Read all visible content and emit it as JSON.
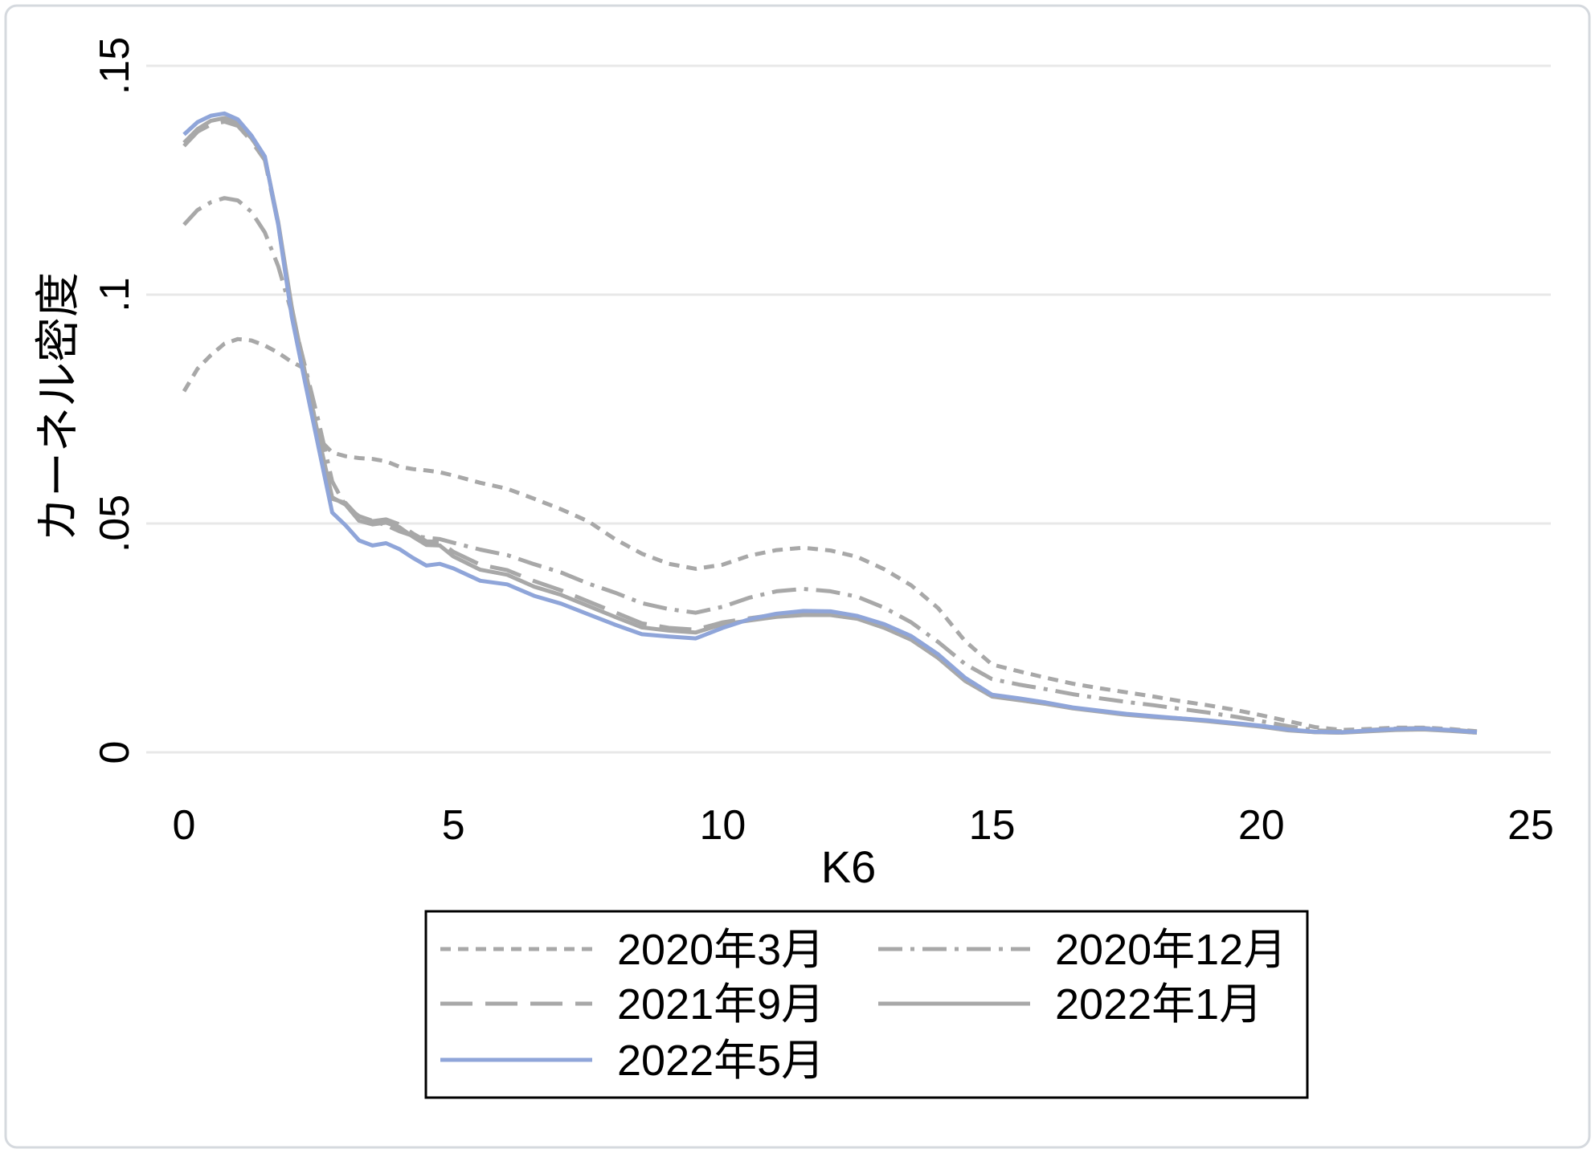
{
  "page": {
    "background": "#ffffff",
    "frame_border_color": "#d5d9de"
  },
  "colors": {
    "grid": "#e8e8e8",
    "gray_series": "#a8a8a8",
    "blue_series": "#8fa5d9",
    "text": "#000000",
    "legend_border": "#000000"
  },
  "chart_data": {
    "type": "line",
    "title": "",
    "xlabel": "K6",
    "ylabel": "カーネル密度",
    "xlim": [
      0,
      25
    ],
    "ylim": [
      0,
      0.15
    ],
    "grid": "horizontal",
    "legend_position": "bottom-center",
    "x_ticks": [
      {
        "value": 0,
        "label": "0"
      },
      {
        "value": 5,
        "label": "5"
      },
      {
        "value": 10,
        "label": "10"
      },
      {
        "value": 15,
        "label": "15"
      },
      {
        "value": 20,
        "label": "20"
      },
      {
        "value": 25,
        "label": "25"
      }
    ],
    "y_ticks": [
      {
        "value": 0,
        "label": "0"
      },
      {
        "value": 0.05,
        "label": ".05"
      },
      {
        "value": 0.1,
        "label": ".1"
      },
      {
        "value": 0.15,
        "label": ".15"
      }
    ],
    "x": [
      0,
      0.25,
      0.5,
      0.75,
      1,
      1.25,
      1.5,
      1.75,
      2,
      2.25,
      2.5,
      2.75,
      3,
      3.25,
      3.5,
      3.75,
      4,
      4.25,
      4.5,
      4.75,
      5,
      5.5,
      6,
      6.5,
      7,
      7.5,
      8,
      8.5,
      9,
      9.5,
      10,
      10.5,
      11,
      11.5,
      12,
      12.5,
      13,
      13.5,
      14,
      14.5,
      15,
      15.5,
      16,
      16.5,
      17,
      17.5,
      18,
      18.5,
      19,
      19.5,
      20,
      20.5,
      21,
      21.5,
      22,
      22.5,
      23,
      23.5,
      24
    ],
    "series": [
      {
        "name": "2020年3月",
        "color": "#a8a8a8",
        "dash": "short-dash",
        "y": [
          0.0789,
          0.0838,
          0.0868,
          0.0893,
          0.0903,
          0.09,
          0.0889,
          0.0873,
          0.0853,
          0.0838,
          0.0685,
          0.0655,
          0.0647,
          0.0643,
          0.0641,
          0.0636,
          0.0624,
          0.0619,
          0.0616,
          0.0612,
          0.0605,
          0.0589,
          0.0576,
          0.0554,
          0.0531,
          0.0505,
          0.0466,
          0.0434,
          0.0412,
          0.0401,
          0.041,
          0.043,
          0.0442,
          0.0447,
          0.0441,
          0.0427,
          0.04,
          0.0365,
          0.0315,
          0.0243,
          0.0192,
          0.0177,
          0.0163,
          0.015,
          0.014,
          0.0131,
          0.0122,
          0.0112,
          0.0103,
          0.0093,
          0.0081,
          0.0068,
          0.0055,
          0.0049,
          0.0051,
          0.0054,
          0.0054,
          0.0051,
          0.0046
        ]
      },
      {
        "name": "2020年12月",
        "color": "#a8a8a8",
        "dash": "dash-dot",
        "y": [
          0.1153,
          0.1185,
          0.1202,
          0.1211,
          0.1206,
          0.1181,
          0.1136,
          0.1062,
          0.096,
          0.0842,
          0.0722,
          0.0592,
          0.0538,
          0.0516,
          0.0506,
          0.0496,
          0.0483,
          0.0473,
          0.0469,
          0.0466,
          0.0458,
          0.0443,
          0.0431,
          0.0411,
          0.0393,
          0.0369,
          0.0349,
          0.0326,
          0.0313,
          0.0305,
          0.0318,
          0.0338,
          0.0352,
          0.0357,
          0.0352,
          0.034,
          0.0316,
          0.0284,
          0.0241,
          0.0193,
          0.016,
          0.0148,
          0.0138,
          0.0127,
          0.0118,
          0.011,
          0.0103,
          0.0095,
          0.0087,
          0.0078,
          0.0068,
          0.0057,
          0.0048,
          0.0046,
          0.0049,
          0.0052,
          0.0053,
          0.005,
          0.0045
        ]
      },
      {
        "name": "2021年9月",
        "color": "#a8a8a8",
        "dash": "long-dash",
        "y": [
          0.1325,
          0.1356,
          0.1372,
          0.1378,
          0.1369,
          0.1336,
          0.1294,
          0.1152,
          0.0968,
          0.0823,
          0.0683,
          0.0554,
          0.0545,
          0.0513,
          0.0505,
          0.0509,
          0.0498,
          0.0478,
          0.0461,
          0.046,
          0.0438,
          0.041,
          0.0398,
          0.0374,
          0.0354,
          0.033,
          0.0306,
          0.0282,
          0.0272,
          0.0268,
          0.0284,
          0.0293,
          0.0301,
          0.0306,
          0.0304,
          0.0295,
          0.0276,
          0.025,
          0.021,
          0.016,
          0.0124,
          0.0116,
          0.0108,
          0.0097,
          0.009,
          0.0083,
          0.0078,
          0.0074,
          0.0069,
          0.0063,
          0.0057,
          0.0049,
          0.0044,
          0.0043,
          0.0047,
          0.005,
          0.0051,
          0.0048,
          0.0043
        ]
      },
      {
        "name": "2022年1月",
        "color": "#a8a8a8",
        "dash": "solid",
        "y": [
          0.1332,
          0.1362,
          0.138,
          0.1386,
          0.1376,
          0.1342,
          0.13,
          0.1158,
          0.0973,
          0.0828,
          0.0688,
          0.0557,
          0.0541,
          0.0506,
          0.0498,
          0.0502,
          0.0492,
          0.0471,
          0.0453,
          0.0452,
          0.0428,
          0.0399,
          0.0388,
          0.0362,
          0.0344,
          0.032,
          0.0296,
          0.0273,
          0.0266,
          0.0262,
          0.028,
          0.0288,
          0.0296,
          0.03,
          0.03,
          0.0292,
          0.0272,
          0.0246,
          0.0206,
          0.0156,
          0.0122,
          0.0114,
          0.0106,
          0.0096,
          0.0089,
          0.0082,
          0.0077,
          0.0073,
          0.0068,
          0.0062,
          0.0056,
          0.0048,
          0.0044,
          0.0043,
          0.0046,
          0.0049,
          0.005,
          0.0047,
          0.0043
        ]
      },
      {
        "name": "2022年5月",
        "color": "#8fa5d9",
        "dash": "solid",
        "y": [
          0.135,
          0.1377,
          0.1391,
          0.1396,
          0.1383,
          0.1348,
          0.1302,
          0.1152,
          0.0952,
          0.0807,
          0.0665,
          0.0524,
          0.0496,
          0.0463,
          0.0452,
          0.0457,
          0.0444,
          0.0425,
          0.0408,
          0.0412,
          0.0402,
          0.0375,
          0.0367,
          0.0342,
          0.0325,
          0.0302,
          0.0279,
          0.0258,
          0.0253,
          0.0249,
          0.0272,
          0.0291,
          0.0303,
          0.0309,
          0.0308,
          0.0298,
          0.028,
          0.0254,
          0.0214,
          0.0163,
          0.0126,
          0.0118,
          0.0109,
          0.0098,
          0.0091,
          0.0084,
          0.0079,
          0.0074,
          0.007,
          0.0064,
          0.0058,
          0.005,
          0.0045,
          0.0044,
          0.0048,
          0.0051,
          0.0052,
          0.0049,
          0.0044
        ]
      }
    ]
  }
}
